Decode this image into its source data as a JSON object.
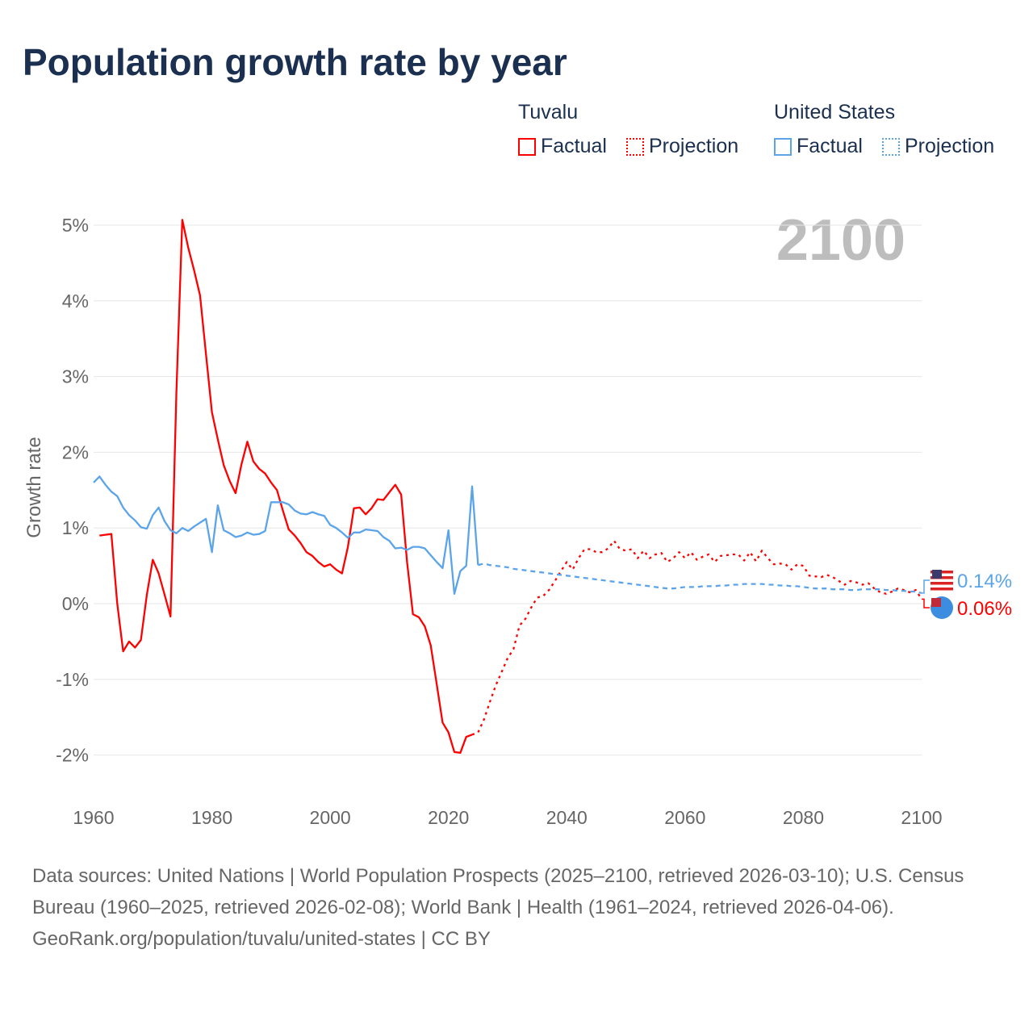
{
  "title": "Population growth rate by year",
  "legend": {
    "groups": [
      {
        "name": "Tuvalu",
        "factual": "Factual",
        "projection": "Projection",
        "color": "#ff0000"
      },
      {
        "name": "United States",
        "factual": "Factual",
        "projection": "Projection",
        "color": "#5ba4ea"
      }
    ]
  },
  "footer": {
    "sources": "Data sources: United Nations | World Population Prospects (2025–2100, retrieved 2026-03-10); U.S. Census Bureau (1960–2025, retrieved 2026-02-08); World Bank | Health (1961–2024, retrieved 2026-04-06).",
    "credit": "GeoRank.org/population/tuvalu/united-states | CC BY"
  },
  "chart_data": {
    "type": "line",
    "title": "Population growth rate by year",
    "xlabel": "",
    "ylabel": "Growth rate",
    "year_label": "2100",
    "xlim": [
      1960,
      2100
    ],
    "ylim": [
      -2,
      5
    ],
    "xticks": [
      1960,
      1980,
      2000,
      2020,
      2040,
      2060,
      2080,
      2100
    ],
    "yticks": [
      {
        "v": 5,
        "label": "5%"
      },
      {
        "v": 4,
        "label": "4%"
      },
      {
        "v": 3,
        "label": "3%"
      },
      {
        "v": 2,
        "label": "2%"
      },
      {
        "v": 1,
        "label": "1%"
      },
      {
        "v": 0,
        "label": "0%"
      },
      {
        "v": -1,
        "label": "-1%"
      },
      {
        "v": -2,
        "label": "-2%"
      }
    ],
    "grid": true,
    "legend_position": "top-right",
    "series": [
      {
        "name": "Tuvalu Factual",
        "color": "#ff0000",
        "dashed": false,
        "x_start": 1961,
        "values": [
          0.9,
          0.91,
          0.92,
          0,
          -0.63,
          -0.5,
          -0.58,
          -0.48,
          0.12,
          0.58,
          0.4,
          0.12,
          -0.17,
          2.8,
          5.07,
          4.7,
          4.4,
          4.07,
          3.3,
          2.53,
          2.17,
          1.83,
          1.62,
          1.46,
          1.84,
          2.14,
          1.88,
          1.78,
          1.72,
          1.6,
          1.5,
          1.23,
          0.98,
          0.9,
          0.8,
          0.68,
          0.63,
          0.55,
          0.49,
          0.52,
          0.45,
          0.4,
          0.75,
          1.26,
          1.27,
          1.18,
          1.26,
          1.38,
          1.37,
          1.47,
          1.57,
          1.44,
          0.55,
          -0.14,
          -0.18,
          -0.3,
          -0.55,
          -1.06,
          -1.57,
          -1.7,
          -1.96,
          -1.97,
          -1.76,
          -1.73
        ]
      },
      {
        "name": "Tuvalu Projection",
        "color": "#ff0000",
        "dashed": true,
        "x_start": 2024,
        "values": [
          -1.73,
          -1.7,
          -1.53,
          -1.3,
          -1.08,
          -0.9,
          -0.72,
          -0.6,
          -0.29,
          -0.2,
          -0.05,
          0.08,
          0.1,
          0.18,
          0.3,
          0.43,
          0.55,
          0.45,
          0.6,
          0.72,
          0.72,
          0.68,
          0.68,
          0.73,
          0.83,
          0.72,
          0.7,
          0.72,
          0.6,
          0.7,
          0.6,
          0.65,
          0.67,
          0.55,
          0.6,
          0.68,
          0.6,
          0.68,
          0.58,
          0.62,
          0.65,
          0.55,
          0.63,
          0.64,
          0.65,
          0.65,
          0.57,
          0.68,
          0.56,
          0.7,
          0.6,
          0.52,
          0.53,
          0.52,
          0.45,
          0.52,
          0.5,
          0.37,
          0.36,
          0.35,
          0.38,
          0.35,
          0.3,
          0.25,
          0.3,
          0.28,
          0.25,
          0.27,
          0.2,
          0.15,
          0.13,
          0.16,
          0.2,
          0.18,
          0.15,
          0.18,
          0.06
        ]
      },
      {
        "name": "United States Factual",
        "color": "#5ba4ea",
        "dashed": false,
        "x_start": 1960,
        "values": [
          1.6,
          1.68,
          1.57,
          1.48,
          1.42,
          1.27,
          1.17,
          1.1,
          1.01,
          0.99,
          1.17,
          1.27,
          1.09,
          0.97,
          0.93,
          1.0,
          0.96,
          1.02,
          1.07,
          1.12,
          0.68,
          1.3,
          0.97,
          0.93,
          0.88,
          0.9,
          0.94,
          0.91,
          0.92,
          0.96,
          1.34,
          1.34,
          1.34,
          1.31,
          1.23,
          1.19,
          1.18,
          1.21,
          1.18,
          1.16,
          1.04,
          1.0,
          0.94,
          0.87,
          0.94,
          0.94,
          0.98,
          0.97,
          0.96,
          0.88,
          0.83,
          0.73,
          0.74,
          0.71,
          0.75,
          0.75,
          0.73,
          0.64,
          0.55,
          0.47,
          0.97,
          0.13,
          0.43,
          0.5,
          1.55,
          0.51
        ]
      },
      {
        "name": "United States Projection",
        "color": "#5ba4ea",
        "dashed": true,
        "x_start": 2025,
        "values": [
          0.51,
          0.53,
          0.51,
          0.5,
          0.49,
          0.48,
          0.46,
          0.45,
          0.44,
          0.43,
          0.42,
          0.41,
          0.4,
          0.39,
          0.38,
          0.37,
          0.36,
          0.35,
          0.34,
          0.33,
          0.32,
          0.31,
          0.3,
          0.29,
          0.28,
          0.27,
          0.26,
          0.25,
          0.24,
          0.23,
          0.22,
          0.21,
          0.2,
          0.2,
          0.21,
          0.22,
          0.22,
          0.22,
          0.23,
          0.23,
          0.23,
          0.24,
          0.24,
          0.25,
          0.25,
          0.26,
          0.26,
          0.26,
          0.26,
          0.25,
          0.25,
          0.24,
          0.24,
          0.23,
          0.23,
          0.22,
          0.21,
          0.2,
          0.2,
          0.2,
          0.19,
          0.19,
          0.19,
          0.18,
          0.18,
          0.19,
          0.19,
          0.19,
          0.19,
          0.18,
          0.18,
          0.17,
          0.17,
          0.16,
          0.16,
          0.14
        ]
      }
    ],
    "end_labels": [
      {
        "country": "United States",
        "label": "0.14%",
        "color": "#5ba4ea"
      },
      {
        "country": "Tuvalu",
        "label": "0.06%",
        "color": "#ff0000"
      }
    ]
  }
}
